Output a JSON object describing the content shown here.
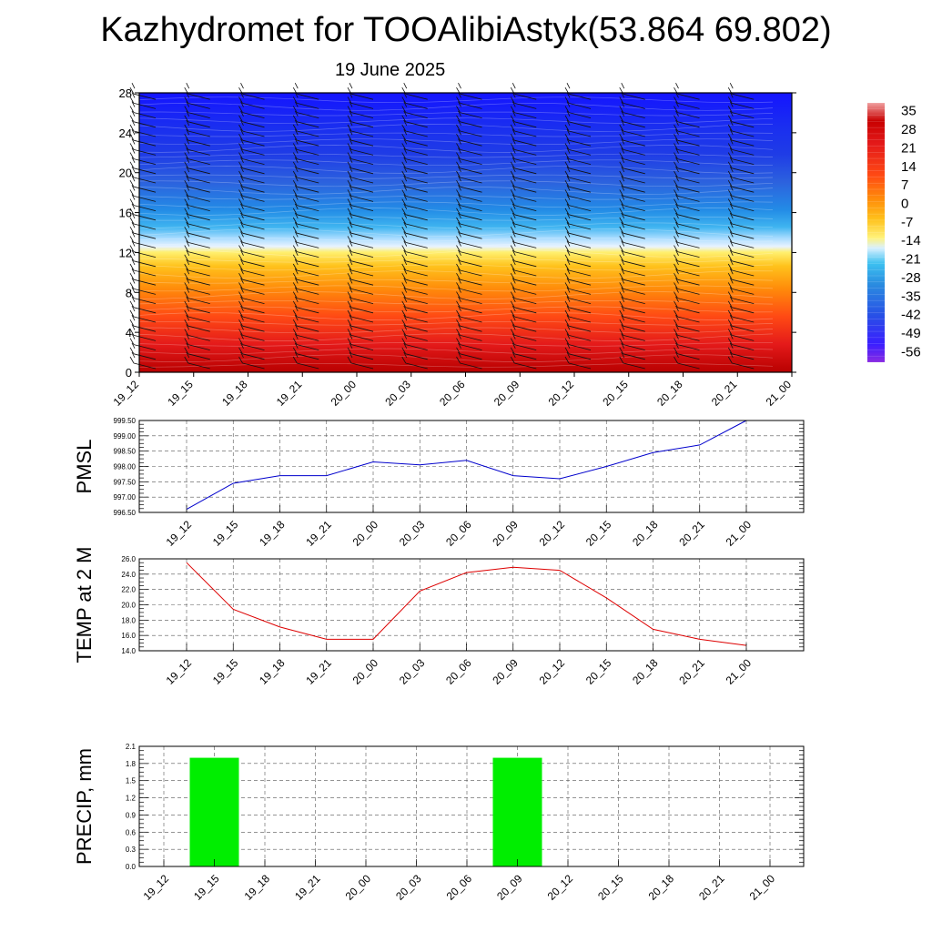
{
  "title": "Kazhydromet for TOOAlibiAstyk(53.864 69.802)",
  "subtitle": "19 June 2025",
  "time_labels": [
    "19_12",
    "19_15",
    "19_18",
    "19_21",
    "20_00",
    "20_03",
    "20_06",
    "20_09",
    "20_12",
    "20_15",
    "20_18",
    "20_21",
    "21_00"
  ],
  "chart_data": [
    {
      "type": "heatmap",
      "yticks": [
        0,
        4,
        8,
        12,
        16,
        20,
        24,
        28
      ],
      "ylim": [
        0,
        28
      ],
      "colorbar": {
        "labels": [
          "35",
          "28",
          "21",
          "14",
          "7",
          "0",
          "-7",
          "-14",
          "-21",
          "-28",
          "-35",
          "-42",
          "-49",
          "-56"
        ],
        "range": [
          -60,
          38
        ]
      },
      "overlay": "wind barbs"
    },
    {
      "type": "line",
      "ylabel": "PMSL",
      "ylim": [
        996.5,
        999.5
      ],
      "yticks": [
        "999.50",
        "999.00",
        "998.50",
        "998.00",
        "997.50",
        "997.00",
        "996.50"
      ],
      "series": [
        {
          "color": "#0000cc",
          "values": [
            996.6,
            997.45,
            997.7,
            997.7,
            998.15,
            998.05,
            998.2,
            997.7,
            997.6,
            998.0,
            998.45,
            998.7,
            999.5
          ]
        }
      ]
    },
    {
      "type": "line",
      "ylabel": "TEMP at 2 M",
      "ylim": [
        14.0,
        26.0
      ],
      "yticks": [
        "26.0",
        "24.0",
        "22.0",
        "20.0",
        "18.0",
        "16.0",
        "14.0"
      ],
      "series": [
        {
          "color": "#dd0000",
          "values": [
            25.5,
            19.4,
            17.1,
            15.5,
            15.5,
            21.8,
            24.2,
            24.9,
            24.5,
            20.9,
            16.8,
            15.5,
            14.7
          ]
        }
      ]
    },
    {
      "type": "bar",
      "ylabel": "PRECIP, mm",
      "ylim": [
        0,
        2.1
      ],
      "yticks": [
        "2.1",
        "1.8",
        "1.5",
        "1.2",
        "0.9",
        "0.6",
        "0.3",
        "0.0"
      ],
      "series": [
        {
          "color": "#00ee00",
          "values": [
            0,
            1.9,
            0,
            0,
            0,
            0,
            0,
            1.9,
            0,
            0,
            0,
            0,
            0
          ]
        }
      ]
    }
  ]
}
